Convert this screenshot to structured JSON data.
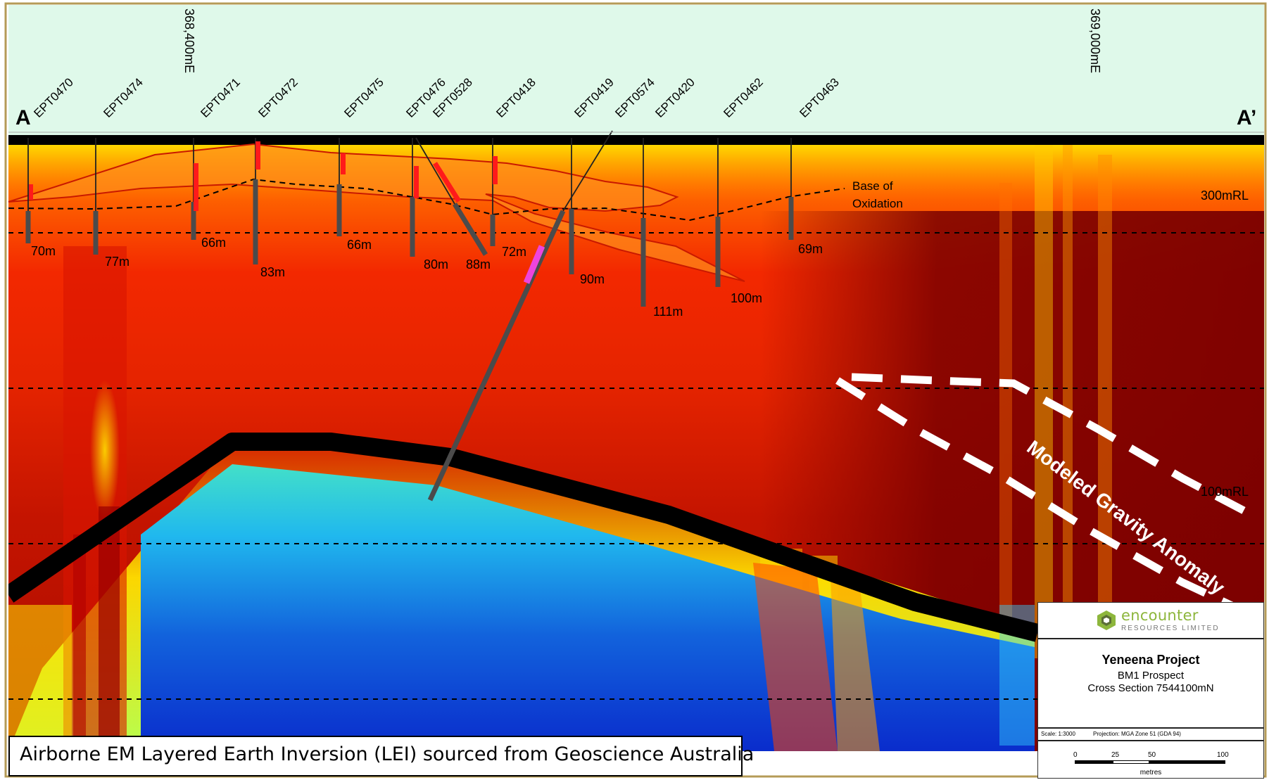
{
  "section": {
    "start_label": "A",
    "end_label": "A’",
    "easting_labels": [
      "368,400mE",
      "369,000mE"
    ],
    "rl_labels": [
      "300mRL",
      "100mRL"
    ],
    "base_of_oxidation": [
      "Base of",
      "Oxidation"
    ],
    "anomaly_label": "Modeled Gravity Anomaly"
  },
  "drillholes": [
    {
      "id": "EPT0470",
      "depth": "70m"
    },
    {
      "id": "EPT0474",
      "depth": "77m"
    },
    {
      "id": "EPT0471",
      "depth": "66m"
    },
    {
      "id": "EPT0472",
      "depth": "83m"
    },
    {
      "id": "EPT0475",
      "depth": "66m"
    },
    {
      "id": "EPT0476",
      "depth": "80m"
    },
    {
      "id": "EPT0528",
      "depth": "88m"
    },
    {
      "id": "EPT0418",
      "depth": "72m"
    },
    {
      "id": "EPT0419",
      "depth": "90m"
    },
    {
      "id": "EPT0574",
      "depth": ""
    },
    {
      "id": "EPT0420",
      "depth": "111m"
    },
    {
      "id": "EPT0462",
      "depth": "100m"
    },
    {
      "id": "EPT0463",
      "depth": "69m"
    }
  ],
  "note": "Airborne EM Layered Earth Inversion (LEI) sourced from Geoscience Australia",
  "title_block": {
    "company": "encounter",
    "company_sub": "RESOURCES LIMITED",
    "project": "Yeneena Project",
    "prospect": "BM1 Prospect",
    "section_name": "Cross Section 7544100mN",
    "scale": "Scale: 1:3000",
    "projection": "Projection: MGA Zone 51 (GDA 94)",
    "scale_ticks": [
      "0",
      "25",
      "50",
      "100"
    ],
    "units": "metres"
  },
  "colors": {
    "accent": "#8db63c",
    "sky": "#dff9ea",
    "anomaly": "#ffffff"
  }
}
